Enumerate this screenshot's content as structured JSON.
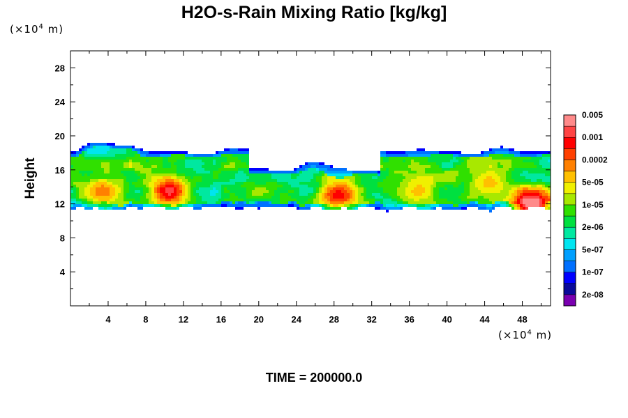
{
  "chart_data": {
    "type": "heatmap",
    "title": "H2O-s-Rain Mixing Ratio [kg/kg]",
    "ylabel": "Height",
    "xlabel": "",
    "x_unit": "(×10⁴ m)",
    "y_unit": "(×10⁴ m)",
    "x_unit_base": "(×10",
    "x_unit_exp": "4",
    "x_unit_tail": " m)",
    "y_unit_base": "(×10",
    "y_unit_exp": "4",
    "y_unit_tail": " m)",
    "footer": "TIME = 200000.0",
    "xlim": [
      0,
      51
    ],
    "ylim": [
      0,
      30
    ],
    "x_ticks": [
      4,
      8,
      12,
      16,
      20,
      24,
      28,
      32,
      36,
      40,
      44,
      48
    ],
    "y_ticks": [
      4,
      8,
      12,
      16,
      20,
      24,
      28
    ],
    "colorbar": {
      "colors": [
        "#7a00b0",
        "#0a0a9a",
        "#0000ff",
        "#0070ff",
        "#00a0ff",
        "#00e5f0",
        "#00e8a0",
        "#00e040",
        "#30e000",
        "#a8e800",
        "#f0f000",
        "#ffc000",
        "#ff8000",
        "#ff4000",
        "#ff0000",
        "#ff4444",
        "#ff8a8a"
      ],
      "labels": [
        "2e-08",
        "1e-07",
        "5e-07",
        "2e-06",
        "1e-05",
        "5e-05",
        "0.0002",
        "0.001",
        "0.005"
      ]
    },
    "field": {
      "description_levels": "0=none,1..17 colorbar bins",
      "cloud_bottom": 11,
      "cloud_top": 19.5,
      "cores": [
        {
          "x": 10.5,
          "y": 13.5,
          "level": 15
        },
        {
          "x": 3.5,
          "y": 13.5,
          "level": 12
        },
        {
          "x": 28.5,
          "y": 13,
          "level": 14
        },
        {
          "x": 49,
          "y": 12,
          "level": 17
        },
        {
          "x": 44.5,
          "y": 14.5,
          "level": 11
        },
        {
          "x": 37,
          "y": 13.5,
          "level": 11
        }
      ]
    }
  }
}
